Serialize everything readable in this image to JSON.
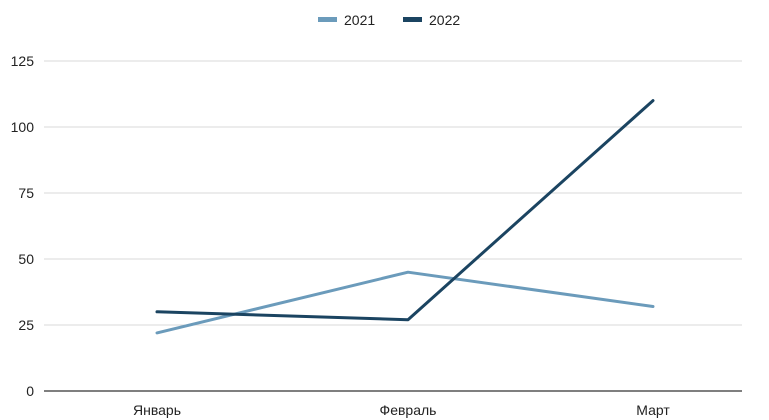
{
  "chart_data": {
    "type": "line",
    "title": "",
    "xlabel": "",
    "ylabel": "",
    "categories": [
      "Январь",
      "Февраль",
      "Март"
    ],
    "ylim": [
      0,
      125
    ],
    "yticks": [
      0,
      25,
      50,
      75,
      100,
      125
    ],
    "grid": true,
    "legend_position": "top",
    "series": [
      {
        "name": "2021",
        "color": "#6b9bbb",
        "values": [
          22,
          45,
          32
        ]
      },
      {
        "name": "2022",
        "color": "#1b4461",
        "values": [
          30,
          27,
          110
        ]
      }
    ]
  }
}
